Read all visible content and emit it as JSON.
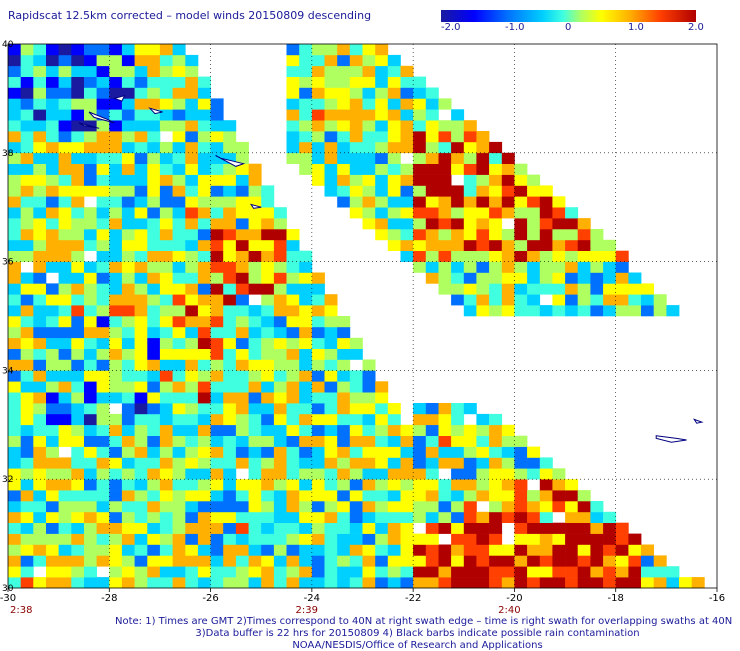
{
  "title": "Rapidscat 12.5km corrected – model winds 20150809 descending",
  "colorbar": {
    "labels": [
      "-2.0",
      "-1.0",
      "0",
      "1.0",
      "2.0"
    ],
    "range": [
      -2.0,
      2.0
    ],
    "colors": [
      "#1a1aa0",
      "#0000ff",
      "#0070ff",
      "#00d0ff",
      "#40ffe0",
      "#b0ff60",
      "#ffff00",
      "#ffb000",
      "#ff4000",
      "#b00000"
    ]
  },
  "map": {
    "lon_range": [
      -30,
      -16
    ],
    "lat_range": [
      30,
      40
    ],
    "x_ticks": [
      "-30",
      "-28",
      "-26",
      "-24",
      "-22",
      "-20",
      "-18",
      "-16"
    ],
    "y_ticks": [
      "40",
      "38",
      "36",
      "34",
      "32",
      "30"
    ],
    "time_labels": [
      "2:38",
      "2:39",
      "2:40"
    ],
    "grid": true,
    "land_outline_color": "#000080",
    "missing_color": "#ffffff"
  },
  "notes": [
    "Note: 1) Times are GMT 2)Times correspond to 40N at right swath edge – time is right swath for overlapping swaths at 40N",
    "3)Data buffer is 22 hrs for 20150809 4) Black barbs indicate possible rain contamination",
    "NOAA/NESDIS/Office of Research and Applications"
  ]
}
